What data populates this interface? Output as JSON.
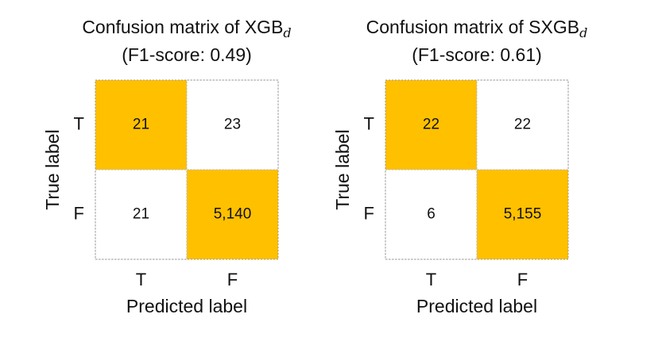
{
  "chart_data": [
    {
      "type": "heatmap",
      "title": "Confusion matrix of XGB",
      "title_subscript": "d",
      "subtitle": "(F1-score: 0.49)",
      "x_label": "Predicted label",
      "y_label": "True label",
      "x_categories": [
        "T",
        "F"
      ],
      "y_categories": [
        "T",
        "F"
      ],
      "values": [
        [
          21,
          23
        ],
        [
          21,
          5140
        ]
      ],
      "value_labels": [
        [
          "21",
          "23"
        ],
        [
          "21",
          "5,140"
        ]
      ],
      "color": "#ffffff",
      "diagonal_color": "#ffc000"
    },
    {
      "type": "heatmap",
      "title": "Confusion matrix of SXGB",
      "title_subscript": "d",
      "subtitle": "(F1-score: 0.61)",
      "x_label": "Predicted label",
      "y_label": "True label",
      "x_categories": [
        "T",
        "F"
      ],
      "y_categories": [
        "T",
        "F"
      ],
      "values": [
        [
          22,
          22
        ],
        [
          6,
          5155
        ]
      ],
      "value_labels": [
        [
          "22",
          "22"
        ],
        [
          "6",
          "5,155"
        ]
      ],
      "color": "#ffffff",
      "diagonal_color": "#ffc000"
    }
  ]
}
